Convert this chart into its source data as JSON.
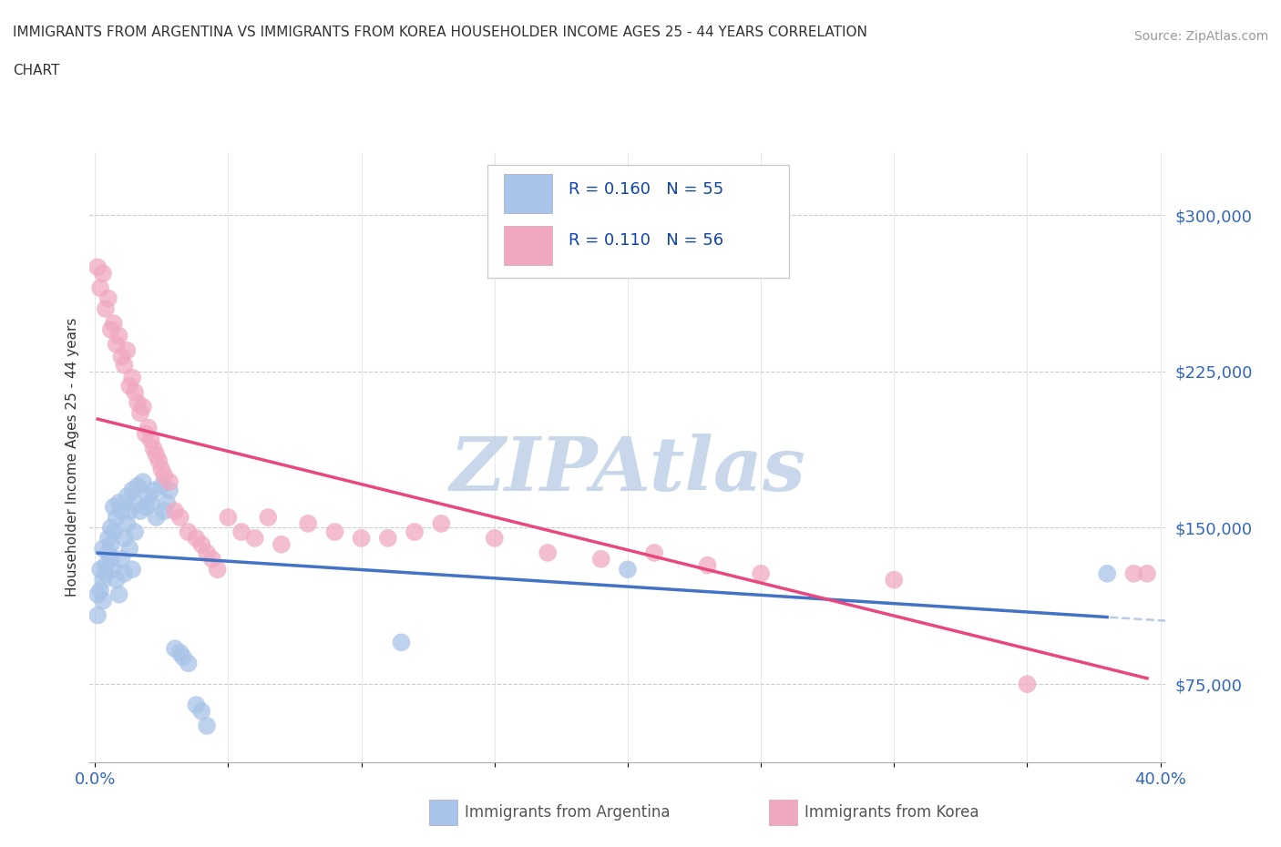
{
  "title_line1": "IMMIGRANTS FROM ARGENTINA VS IMMIGRANTS FROM KOREA HOUSEHOLDER INCOME AGES 25 - 44 YEARS CORRELATION",
  "title_line2": "CHART",
  "source_text": "Source: ZipAtlas.com",
  "ylabel": "Householder Income Ages 25 - 44 years",
  "xlim": [
    -0.002,
    0.402
  ],
  "ylim": [
    37500,
    330000
  ],
  "xticks": [
    0.0,
    0.05,
    0.1,
    0.15,
    0.2,
    0.25,
    0.3,
    0.35,
    0.4
  ],
  "xticklabels": [
    "0.0%",
    "",
    "",
    "",
    "",
    "",
    "",
    "",
    "40.0%"
  ],
  "ytick_positions": [
    75000,
    150000,
    225000,
    300000
  ],
  "ytick_labels": [
    "$75,000",
    "$150,000",
    "$225,000",
    "$300,000"
  ],
  "argentina_R": 0.16,
  "argentina_N": 55,
  "korea_R": 0.11,
  "korea_N": 56,
  "argentina_color": "#a8c4e8",
  "korea_color": "#f0a8c0",
  "argentina_line_color": "#4472c4",
  "korea_line_color": "#e84880",
  "watermark": "ZIPAtlas",
  "watermark_color": "#c8d8ea",
  "legend_box_color": "#e8e8f0",
  "argentina_x": [
    0.001,
    0.001,
    0.002,
    0.002,
    0.003,
    0.003,
    0.003,
    0.004,
    0.004,
    0.005,
    0.005,
    0.006,
    0.006,
    0.006,
    0.007,
    0.007,
    0.007,
    0.008,
    0.008,
    0.009,
    0.009,
    0.01,
    0.01,
    0.011,
    0.011,
    0.012,
    0.012,
    0.013,
    0.013,
    0.014,
    0.014,
    0.015,
    0.015,
    0.016,
    0.017,
    0.018,
    0.019,
    0.02,
    0.021,
    0.022,
    0.023,
    0.025,
    0.026,
    0.027,
    0.028,
    0.03,
    0.032,
    0.033,
    0.035,
    0.038,
    0.04,
    0.042,
    0.115,
    0.2,
    0.38
  ],
  "argentina_y": [
    118000,
    108000,
    130000,
    120000,
    140000,
    125000,
    115000,
    132000,
    128000,
    145000,
    138000,
    150000,
    142000,
    135000,
    148000,
    160000,
    130000,
    155000,
    125000,
    162000,
    118000,
    158000,
    135000,
    145000,
    128000,
    152000,
    165000,
    158000,
    140000,
    168000,
    130000,
    162000,
    148000,
    170000,
    158000,
    172000,
    160000,
    165000,
    162000,
    168000,
    155000,
    170000,
    158000,
    162000,
    168000,
    92000,
    90000,
    88000,
    85000,
    65000,
    62000,
    55000,
    95000,
    130000,
    128000
  ],
  "korea_x": [
    0.001,
    0.002,
    0.003,
    0.004,
    0.005,
    0.006,
    0.007,
    0.008,
    0.009,
    0.01,
    0.011,
    0.012,
    0.013,
    0.014,
    0.015,
    0.016,
    0.017,
    0.018,
    0.019,
    0.02,
    0.021,
    0.022,
    0.023,
    0.024,
    0.025,
    0.026,
    0.028,
    0.03,
    0.032,
    0.035,
    0.038,
    0.04,
    0.042,
    0.044,
    0.046,
    0.05,
    0.055,
    0.06,
    0.065,
    0.07,
    0.08,
    0.09,
    0.1,
    0.11,
    0.12,
    0.13,
    0.15,
    0.17,
    0.19,
    0.21,
    0.23,
    0.25,
    0.3,
    0.35,
    0.39,
    0.395
  ],
  "korea_y": [
    275000,
    265000,
    272000,
    255000,
    260000,
    245000,
    248000,
    238000,
    242000,
    232000,
    228000,
    235000,
    218000,
    222000,
    215000,
    210000,
    205000,
    208000,
    195000,
    198000,
    192000,
    188000,
    185000,
    182000,
    178000,
    175000,
    172000,
    158000,
    155000,
    148000,
    145000,
    142000,
    138000,
    135000,
    130000,
    155000,
    148000,
    145000,
    155000,
    142000,
    152000,
    148000,
    145000,
    145000,
    148000,
    152000,
    145000,
    138000,
    135000,
    138000,
    132000,
    128000,
    125000,
    75000,
    128000,
    128000
  ]
}
